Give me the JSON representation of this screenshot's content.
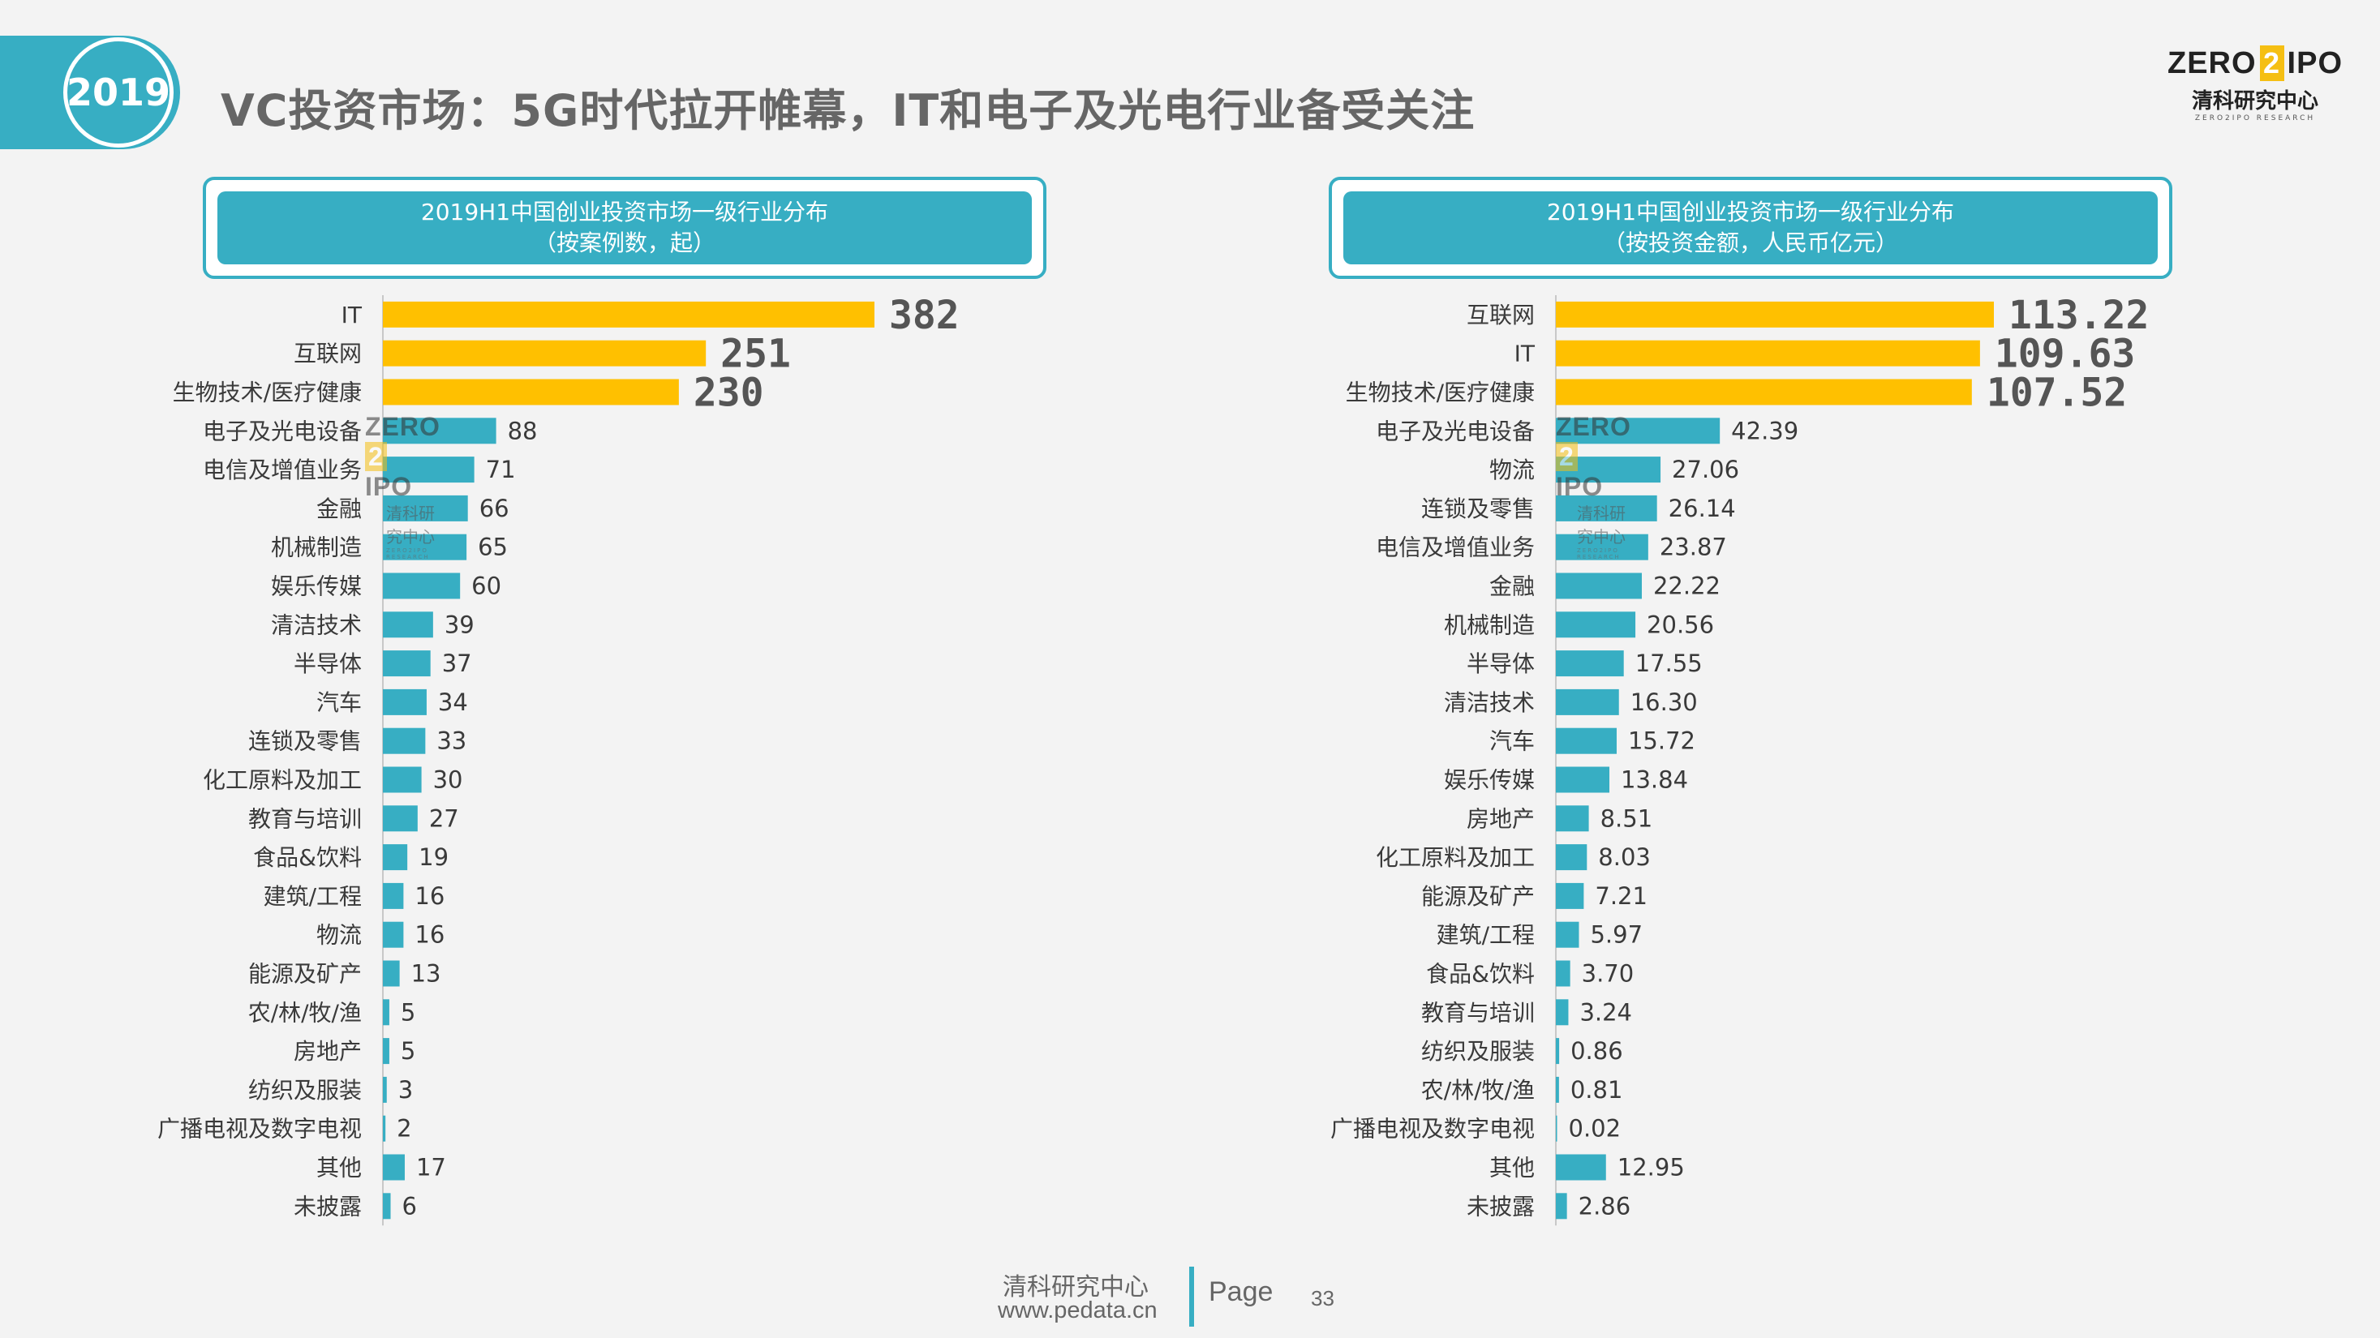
{
  "header": {
    "year": "2019",
    "title": "VC投资市场：5G时代拉开帷幕，IT和电子及光电行业备受关注"
  },
  "logo": {
    "brand_left": "ZERO",
    "brand_num": "2",
    "brand_right": "IPO",
    "cn": "清科研究中心",
    "en": "ZERO2IPO RESEARCH"
  },
  "footer": {
    "org": "清科研究中心",
    "url": "www.pedata.cn",
    "page_label": "Page",
    "page_number": "33"
  },
  "colors": {
    "accent": "#37aec3",
    "highlight": "#ffc000",
    "bar": "#37aec3"
  },
  "chart_data": [
    {
      "type": "bar",
      "orientation": "horizontal",
      "title_line1": "2019H1中国创业投资市场一级行业分布",
      "title_line2": "（按案例数，起）",
      "categories": [
        "IT",
        "互联网",
        "生物技术/医疗健康",
        "电子及光电设备",
        "电信及增值业务",
        "金融",
        "机械制造",
        "娱乐传媒",
        "清洁技术",
        "半导体",
        "汽车",
        "连锁及零售",
        "化工原料及加工",
        "教育与培训",
        "食品&饮料",
        "建筑/工程",
        "物流",
        "能源及矿产",
        "农/林/牧/渔",
        "房地产",
        "纺织及服装",
        "广播电视及数字电视",
        "其他",
        "未披露"
      ],
      "values": [
        382,
        251,
        230,
        88,
        71,
        66,
        65,
        60,
        39,
        37,
        34,
        33,
        30,
        27,
        19,
        16,
        16,
        13,
        5,
        5,
        3,
        2,
        17,
        6
      ],
      "labels": [
        "382",
        "251",
        "230",
        "88",
        "71",
        "66",
        "65",
        "60",
        "39",
        "37",
        "34",
        "33",
        "30",
        "27",
        "19",
        "16",
        "16",
        "13",
        "5",
        "5",
        "3",
        "2",
        "17",
        "6"
      ],
      "highlight_top": 3,
      "xlim": [
        0,
        382
      ]
    },
    {
      "type": "bar",
      "orientation": "horizontal",
      "title_line1": "2019H1中国创业投资市场一级行业分布",
      "title_line2": "（按投资金额，人民币亿元）",
      "categories": [
        "互联网",
        "IT",
        "生物技术/医疗健康",
        "电子及光电设备",
        "物流",
        "连锁及零售",
        "电信及增值业务",
        "金融",
        "机械制造",
        "半导体",
        "清洁技术",
        "汽车",
        "娱乐传媒",
        "房地产",
        "化工原料及加工",
        "能源及矿产",
        "建筑/工程",
        "食品&饮料",
        "教育与培训",
        "纺织及服装",
        "农/林/牧/渔",
        "广播电视及数字电视",
        "其他",
        "未披露"
      ],
      "values": [
        113.22,
        109.63,
        107.52,
        42.39,
        27.06,
        26.14,
        23.87,
        22.22,
        20.56,
        17.55,
        16.3,
        15.72,
        13.84,
        8.51,
        8.03,
        7.21,
        5.97,
        3.7,
        3.24,
        0.86,
        0.81,
        0.02,
        12.95,
        2.86
      ],
      "labels": [
        "113.22",
        "109.63",
        "107.52",
        "42.39",
        "27.06",
        "26.14",
        "23.87",
        "22.22",
        "20.56",
        "17.55",
        "16.30",
        "15.72",
        "13.84",
        "8.51",
        "8.03",
        "7.21",
        "5.97",
        "3.70",
        "3.24",
        "0.86",
        "0.81",
        "0.02",
        "12.95",
        "2.86"
      ],
      "highlight_top": 3,
      "xlim": [
        0,
        113.22
      ]
    }
  ]
}
